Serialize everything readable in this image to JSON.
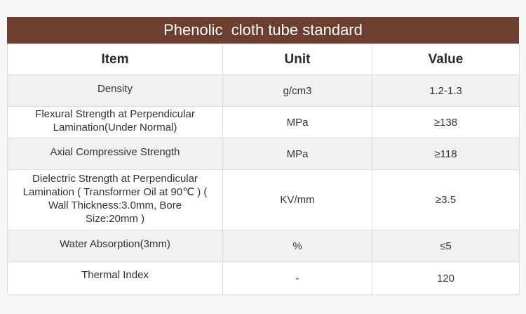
{
  "title": "Phenolic  cloth tube standard",
  "columns": [
    "Item",
    "Unit",
    "Value"
  ],
  "rows": [
    {
      "item": "Density",
      "unit": "g/cm3",
      "value": "1.2-1.3"
    },
    {
      "item": "Flexural Strength at Perpendicular Lamination(Under Normal)",
      "unit": "MPa",
      "value": "≥138"
    },
    {
      "item": "Axial Compressive Strength",
      "unit": "MPa",
      "value": "≥118"
    },
    {
      "item": "Dielectric Strength at Perpendicular Lamination ( Transformer Oil at 90℃ ) ( Wall Thickness:3.0mm, Bore Size:20mm )",
      "unit": "KV/mm",
      "value": "≥3.5"
    },
    {
      "item": "Water Absorption(3mm)",
      "unit": "%",
      "value": "≤5"
    },
    {
      "item": "Thermal Index",
      "unit": "-",
      "value": "120"
    }
  ],
  "colors": {
    "title_bar": "#6e3f2e",
    "alt_row": "#f1f1f1"
  }
}
